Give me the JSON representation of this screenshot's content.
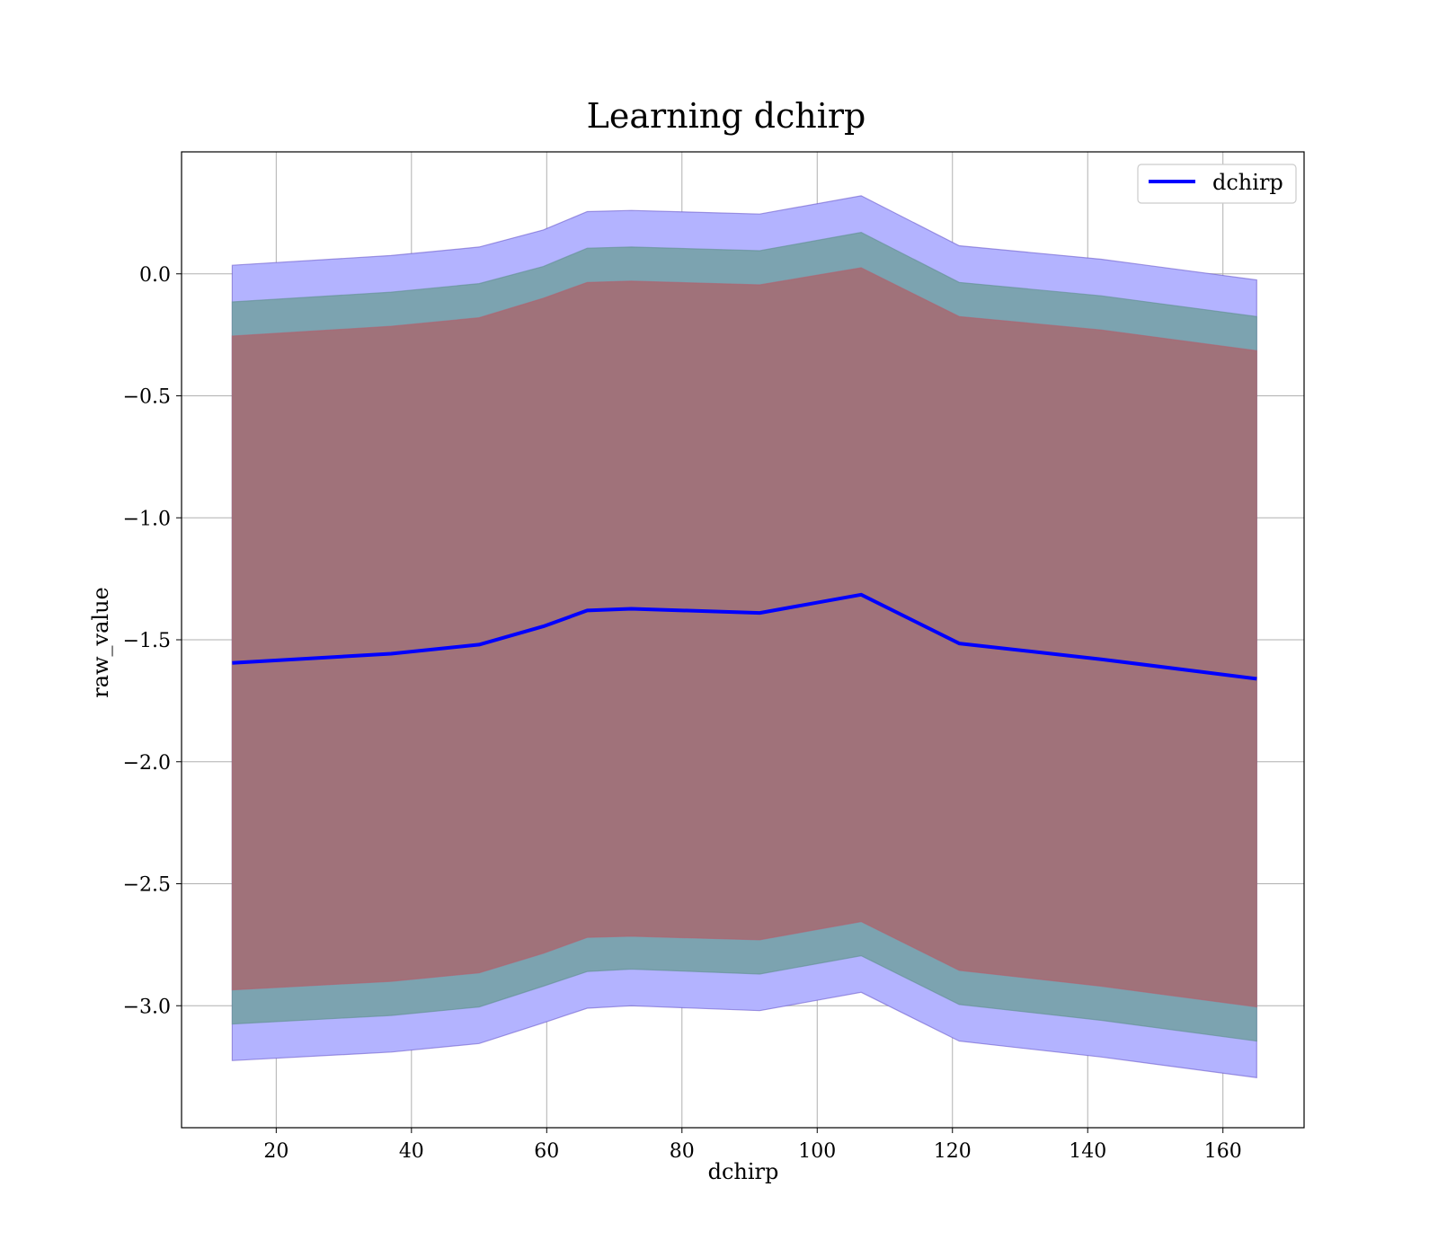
{
  "chart_data": {
    "type": "line",
    "title": "Learning dchirp",
    "xlabel": "dchirp",
    "ylabel": "raw_value",
    "xlim": [
      6,
      172
    ],
    "ylim": [
      -3.5,
      0.5
    ],
    "x_ticks": [
      20,
      40,
      60,
      80,
      100,
      120,
      140,
      160
    ],
    "y_ticks": [
      0.0,
      -0.5,
      -1.0,
      -1.5,
      -2.0,
      -2.5,
      -3.0
    ],
    "y_tick_labels": [
      "0.0",
      "−0.5",
      "−1.0",
      "−1.5",
      "−2.0",
      "−2.5",
      "−3.0"
    ],
    "grid": true,
    "legend_position": "top-right",
    "x": [
      13.5,
      37,
      50,
      59.5,
      66,
      72.5,
      91.5,
      106.5,
      121,
      142,
      165
    ],
    "series": [
      {
        "name": "dchirp",
        "color": "#0000ff",
        "values": [
          -1.595,
          -1.557,
          -1.52,
          -1.445,
          -1.38,
          -1.373,
          -1.39,
          -1.315,
          -1.515,
          -1.58,
          -1.66
        ]
      }
    ],
    "bands": [
      {
        "color": "#6a5acd",
        "fill": "#b3b3ff",
        "upper": [
          0.035,
          0.075,
          0.11,
          0.18,
          0.255,
          0.26,
          0.245,
          0.32,
          0.115,
          0.06,
          -0.025
        ],
        "lower": [
          -3.225,
          -3.19,
          -3.155,
          -3.07,
          -3.01,
          -3.0,
          -3.02,
          -2.945,
          -3.145,
          -3.21,
          -3.295
        ]
      },
      {
        "color": "#5f8f8f",
        "fill": "#7ca3b0",
        "upper": [
          -0.115,
          -0.075,
          -0.04,
          0.03,
          0.105,
          0.11,
          0.095,
          0.17,
          -0.035,
          -0.09,
          -0.175
        ],
        "lower": [
          -3.075,
          -3.04,
          -3.005,
          -2.92,
          -2.86,
          -2.85,
          -2.87,
          -2.795,
          -2.995,
          -3.06,
          -3.145
        ]
      },
      {
        "color": "#b06070",
        "fill": "#a0727a",
        "upper": [
          -0.255,
          -0.215,
          -0.18,
          -0.1,
          -0.035,
          -0.03,
          -0.045,
          0.025,
          -0.175,
          -0.23,
          -0.315
        ],
        "lower": [
          -2.935,
          -2.9,
          -2.865,
          -2.785,
          -2.72,
          -2.715,
          -2.73,
          -2.655,
          -2.855,
          -2.92,
          -3.005
        ]
      }
    ]
  }
}
